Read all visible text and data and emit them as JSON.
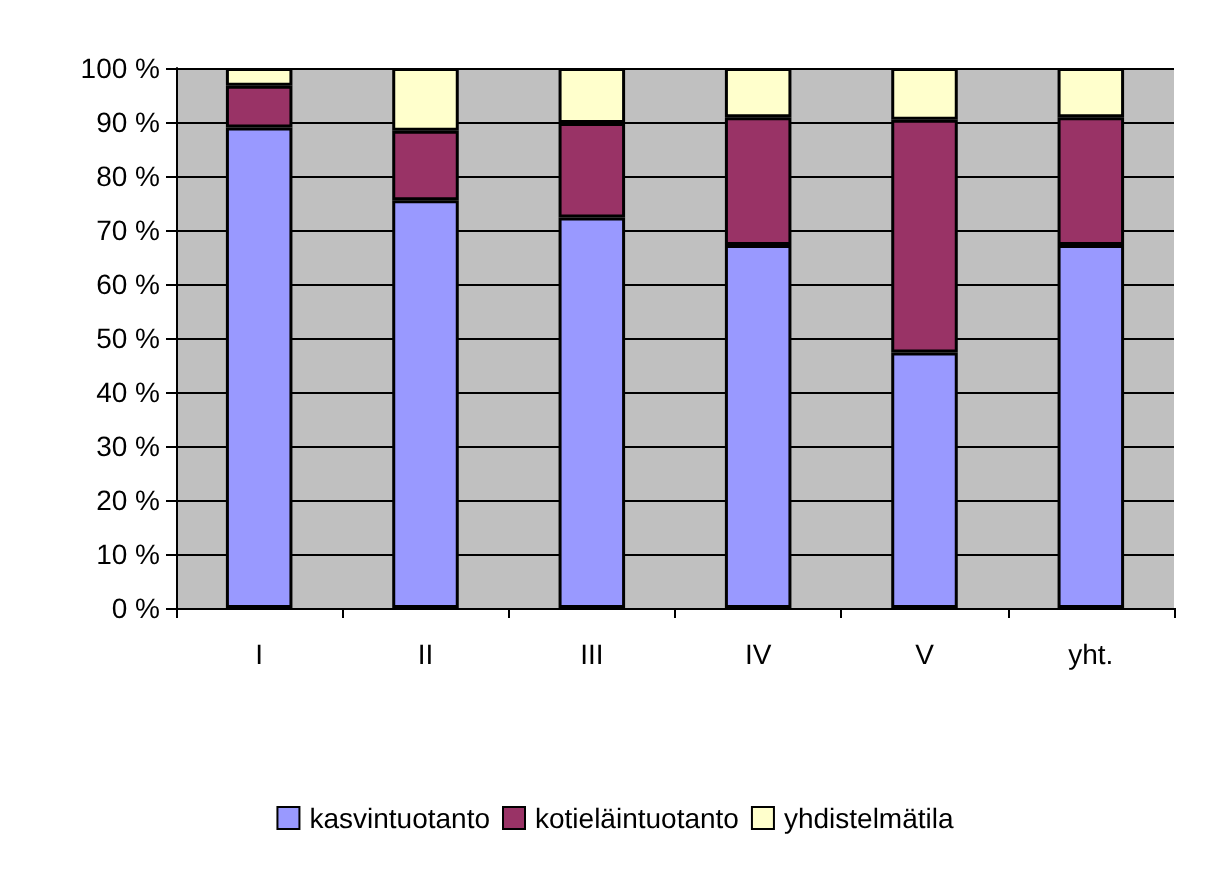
{
  "chart_data": {
    "type": "bar",
    "stacked": true,
    "categories": [
      "I",
      "II",
      "III",
      "IV",
      "V",
      "yht."
    ],
    "series": [
      {
        "name": "kasvintuotanto",
        "color": "#9999ff",
        "values": [
          89.0,
          75.5,
          72.3,
          67.2,
          47.3,
          67.2
        ]
      },
      {
        "name": "kotieläintuotanto",
        "color": "#993366",
        "values": [
          7.7,
          12.9,
          17.5,
          23.7,
          43.1,
          23.7
        ]
      },
      {
        "name": "yhdistelmätila",
        "color": "#ffffcc",
        "values": [
          3.3,
          11.6,
          10.2,
          9.1,
          9.6,
          9.1
        ]
      }
    ],
    "ylim": [
      0,
      100
    ],
    "yticks": [
      {
        "value": 0,
        "label": "0 %"
      },
      {
        "value": 10,
        "label": "10 %"
      },
      {
        "value": 20,
        "label": "20 %"
      },
      {
        "value": 30,
        "label": "30 %"
      },
      {
        "value": 40,
        "label": "40 %"
      },
      {
        "value": 50,
        "label": "50 %"
      },
      {
        "value": 60,
        "label": "60 %"
      },
      {
        "value": 70,
        "label": "70 %"
      },
      {
        "value": 80,
        "label": "80 %"
      },
      {
        "value": 90,
        "label": "90 %"
      },
      {
        "value": 100,
        "label": "100 %"
      }
    ],
    "grid": "y",
    "legend": "bottom"
  }
}
